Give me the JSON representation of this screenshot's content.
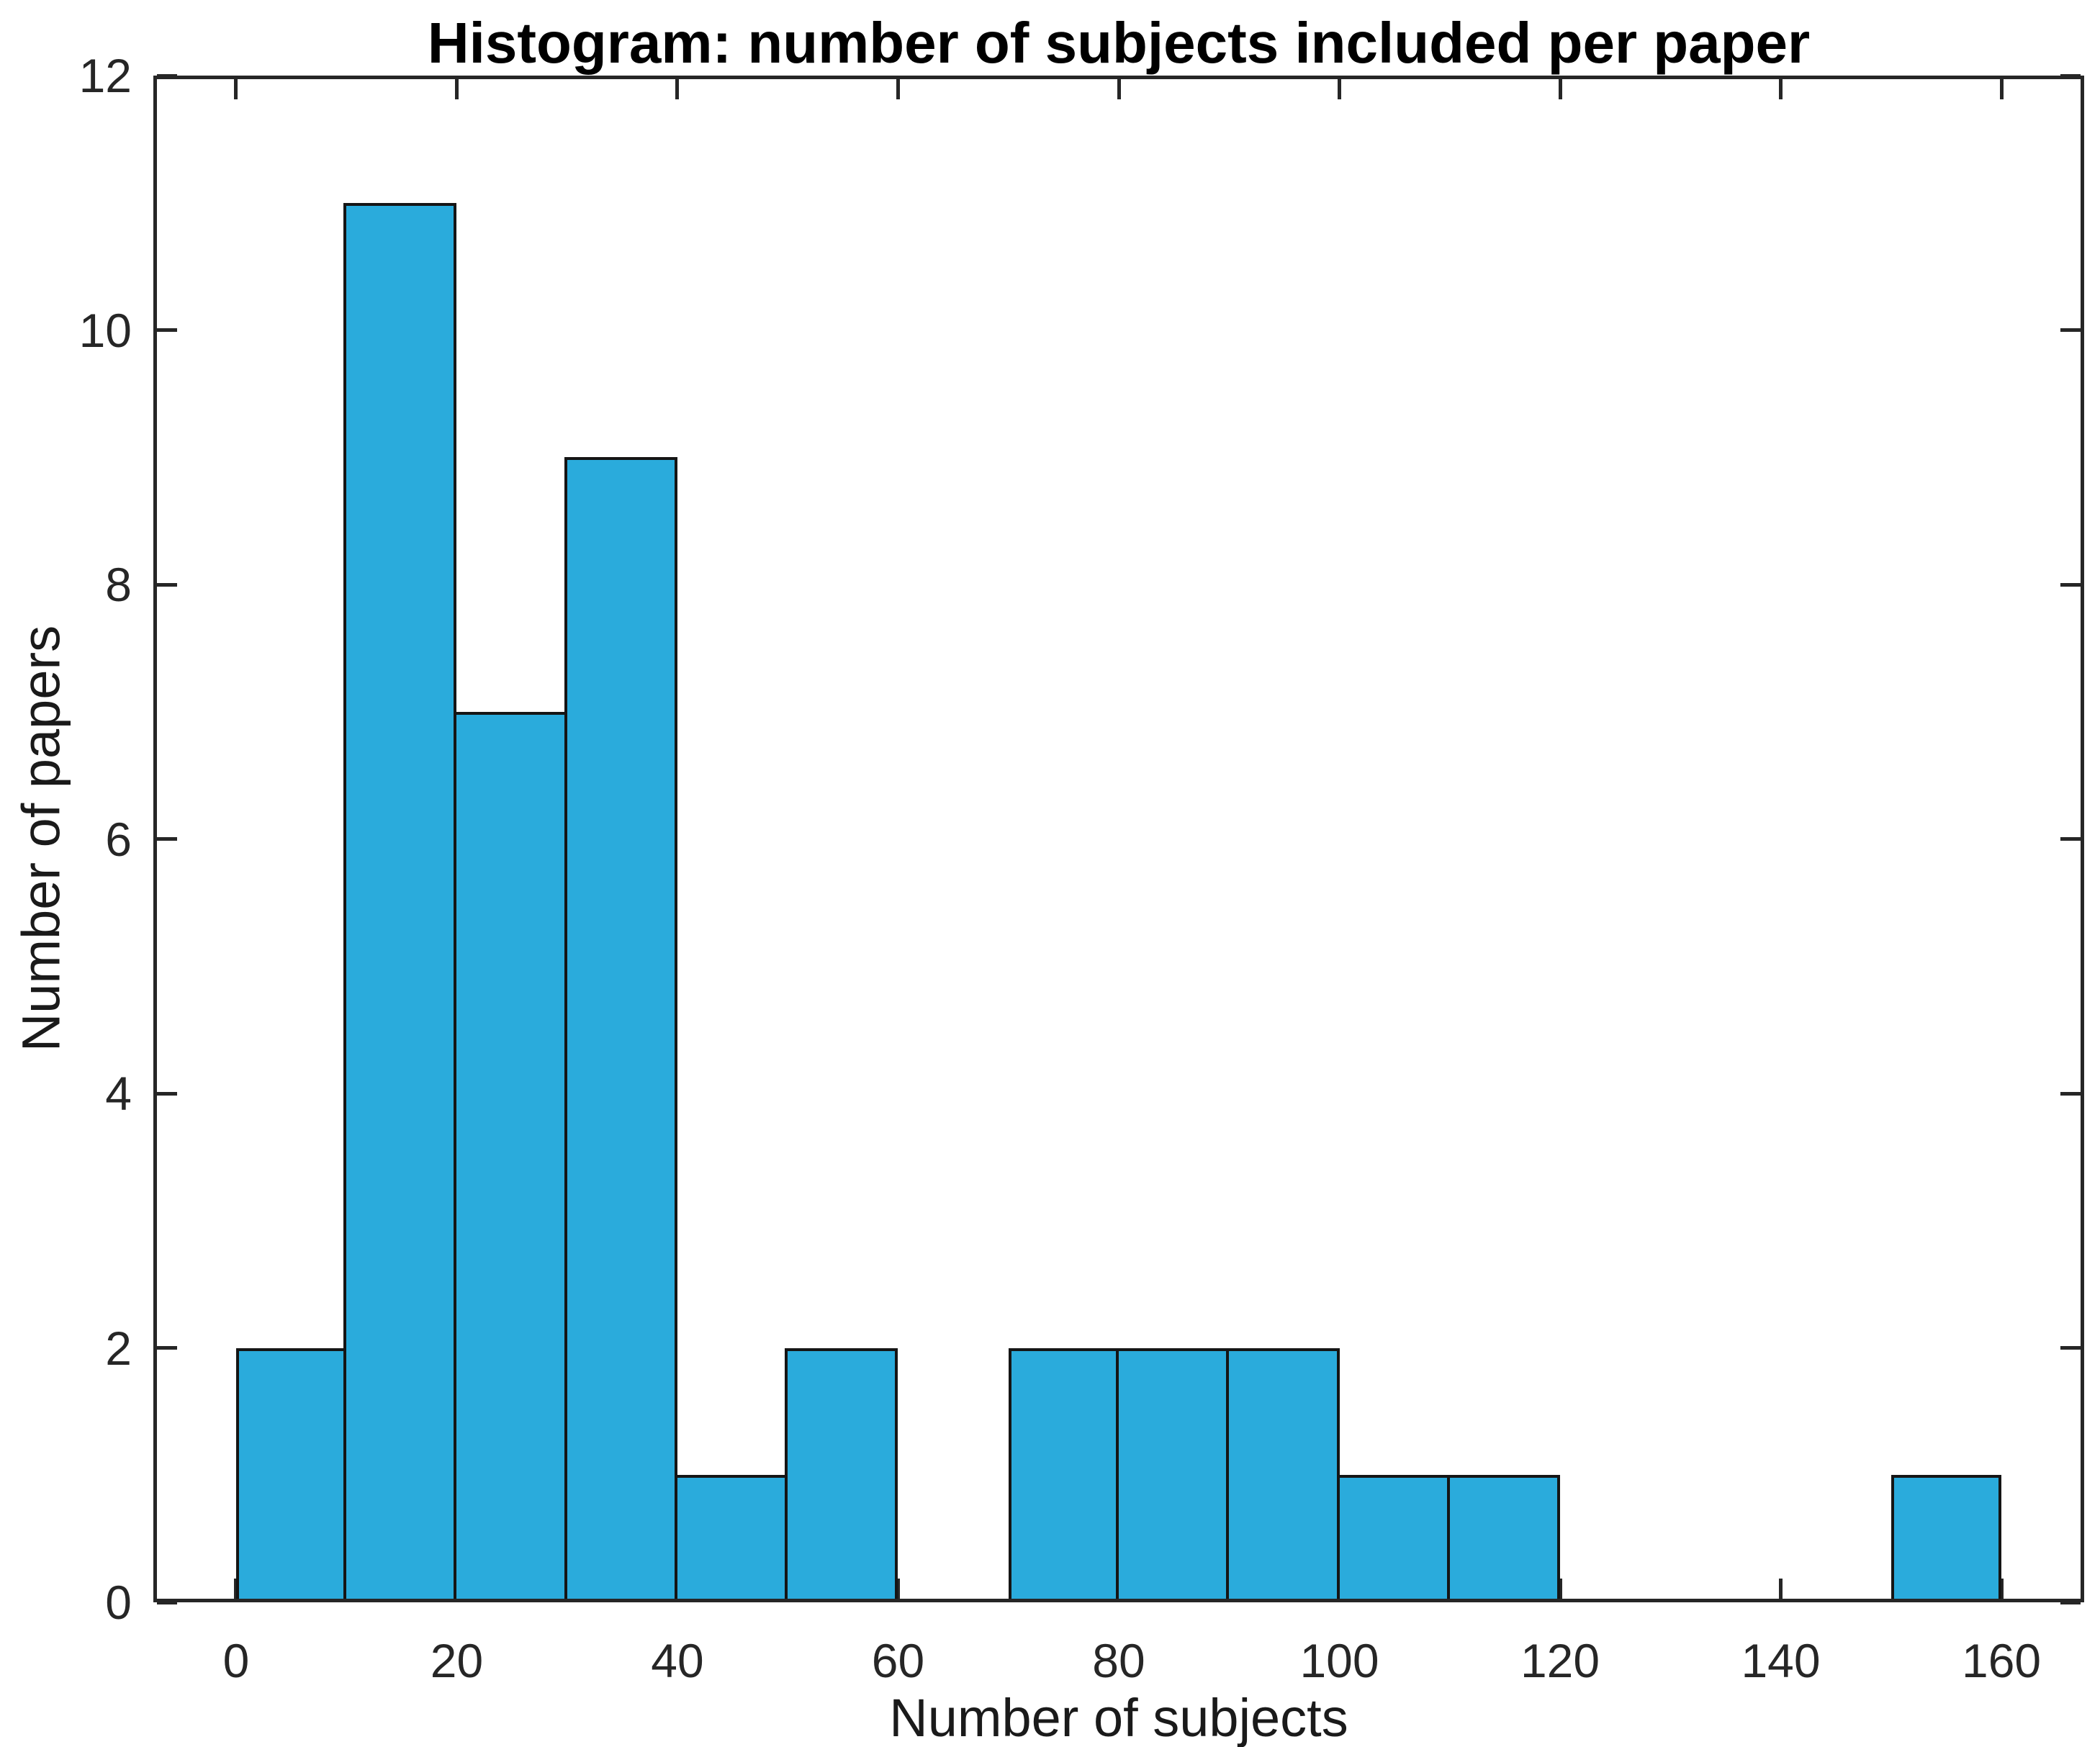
{
  "chart_data": {
    "type": "bar",
    "subtype": "histogram",
    "title": "Histogram: number of subjects included per paper",
    "xlabel": "Number of subjects",
    "ylabel": "Number of papers",
    "bin_edges": [
      0,
      10,
      20,
      30,
      40,
      50,
      60,
      70,
      80,
      90,
      100,
      110,
      120,
      130,
      140,
      150,
      160
    ],
    "counts": [
      2,
      11,
      7,
      9,
      1,
      2,
      0,
      2,
      2,
      2,
      1,
      1,
      0,
      0,
      0,
      1
    ],
    "xticks": [
      0,
      20,
      40,
      60,
      80,
      100,
      120,
      140,
      160
    ],
    "yticks": [
      0,
      2,
      4,
      6,
      8,
      10,
      12
    ],
    "xlim": [
      -7.5,
      167.5
    ],
    "ylim": [
      0,
      12
    ],
    "grid": false,
    "legend_position": "none",
    "colors": {
      "bar_fill": "#2aabdc",
      "bar_edge": "#151515",
      "axis": "#262626",
      "text": "#000000",
      "background": "#ffffff"
    }
  }
}
